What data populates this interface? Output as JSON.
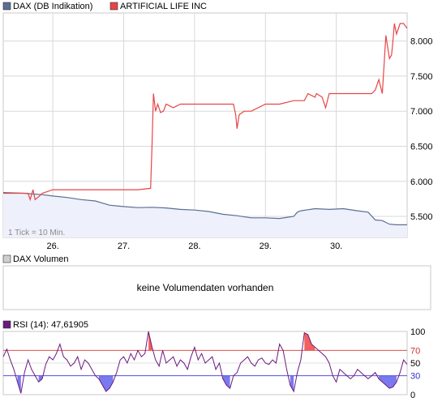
{
  "legend": {
    "dax_label": "DAX (DB Indikation)",
    "dax_color": "#5a6f94",
    "artificial_label": "ARTIFICIAL LIFE INC",
    "artificial_color": "#e64646"
  },
  "tick_note": "1 Tick = 10 Min.",
  "volume_panel": {
    "label": "DAX Volumen",
    "legend_color": "#cfcfcf",
    "message": "keine Volumendaten vorhanden"
  },
  "rsi_panel": {
    "label": "RSI (14): 47,61905",
    "legend_color": "#6b1a7e"
  },
  "chart_data": [
    {
      "type": "line",
      "title": "",
      "x_tick_labels": [
        "26.",
        "27.",
        "28.",
        "29.",
        "30."
      ],
      "y_tick_labels": [
        "8.000",
        "7.500",
        "7.000",
        "6.500",
        "6.000",
        "5.500"
      ],
      "y_ticks": [
        8000,
        7500,
        7000,
        6500,
        6000,
        5500
      ],
      "ylim": [
        5200,
        8400
      ],
      "xlim": [
        25.3,
        31.0
      ],
      "grid": true,
      "legend_position": "top",
      "series": [
        {
          "name": "DAX (DB Indikation)",
          "color": "#5a6f94",
          "fill": "#eef0fb",
          "x": [
            25.3,
            25.6,
            25.85,
            26.0,
            26.2,
            26.4,
            26.6,
            26.8,
            27.0,
            27.2,
            27.4,
            27.6,
            27.8,
            28.0,
            28.2,
            28.4,
            28.6,
            28.8,
            29.0,
            29.2,
            29.4,
            29.45,
            29.5,
            29.7,
            29.9,
            30.1,
            30.3,
            30.45,
            30.55,
            30.65,
            30.75,
            30.85,
            31.0
          ],
          "y": [
            5840,
            5830,
            5810,
            5790,
            5770,
            5740,
            5720,
            5660,
            5640,
            5625,
            5630,
            5620,
            5600,
            5590,
            5570,
            5530,
            5510,
            5480,
            5480,
            5470,
            5500,
            5560,
            5580,
            5610,
            5600,
            5610,
            5580,
            5560,
            5450,
            5440,
            5390,
            5380,
            5380
          ]
        },
        {
          "name": "ARTIFICIAL LIFE INC",
          "color": "#e64646",
          "x": [
            25.3,
            25.65,
            25.68,
            25.72,
            25.75,
            25.8,
            25.85,
            26.0,
            26.3,
            26.6,
            26.9,
            27.2,
            27.38,
            27.4,
            27.42,
            27.45,
            27.48,
            27.52,
            27.56,
            27.6,
            27.7,
            27.8,
            28.0,
            28.2,
            28.4,
            28.55,
            28.58,
            28.6,
            28.63,
            28.7,
            28.8,
            29.0,
            29.2,
            29.4,
            29.5,
            29.55,
            29.6,
            29.7,
            29.72,
            29.8,
            29.85,
            29.9,
            30.0,
            30.2,
            30.4,
            30.5,
            30.55,
            30.6,
            30.65,
            30.7,
            30.75,
            30.78,
            30.8,
            30.82,
            30.85,
            30.9,
            30.95,
            31.0
          ],
          "y": [
            5830,
            5830,
            5740,
            5880,
            5740,
            5780,
            5830,
            5880,
            5880,
            5880,
            5880,
            5880,
            5900,
            6530,
            7250,
            7000,
            7100,
            6980,
            7000,
            7100,
            7050,
            7100,
            7100,
            7100,
            7100,
            7100,
            6950,
            6750,
            6950,
            7000,
            7000,
            7100,
            7100,
            7150,
            7150,
            7150,
            7250,
            7200,
            7250,
            7200,
            7050,
            7250,
            7250,
            7250,
            7250,
            7250,
            7300,
            7450,
            7250,
            8080,
            7750,
            7800,
            8000,
            8250,
            8100,
            8250,
            8250,
            8180
          ]
        }
      ]
    },
    {
      "type": "area",
      "title": "",
      "y_tick_labels": [
        "100",
        "70",
        "50",
        "30",
        "0"
      ],
      "y_ticks": [
        100,
        70,
        50,
        30,
        0
      ],
      "ylim": [
        0,
        100
      ],
      "xlim": [
        25.3,
        31.0
      ],
      "overbought": 70,
      "oversold": 30,
      "series": [
        {
          "name": "RSI (14): 47,61905",
          "color": "#6b1a7e",
          "x": [
            25.3,
            25.35,
            25.4,
            25.45,
            25.5,
            25.55,
            25.6,
            25.65,
            25.7,
            25.75,
            25.8,
            25.85,
            25.9,
            25.95,
            26.0,
            26.05,
            26.1,
            26.15,
            26.2,
            26.25,
            26.3,
            26.35,
            26.4,
            26.45,
            26.5,
            26.55,
            26.6,
            26.65,
            26.7,
            26.75,
            26.8,
            26.85,
            26.9,
            26.95,
            27.0,
            27.05,
            27.1,
            27.15,
            27.2,
            27.25,
            27.3,
            27.35,
            27.4,
            27.45,
            27.5,
            27.55,
            27.6,
            27.65,
            27.7,
            27.75,
            27.8,
            27.85,
            27.9,
            27.95,
            28.0,
            28.05,
            28.1,
            28.15,
            28.2,
            28.25,
            28.3,
            28.35,
            28.4,
            28.45,
            28.5,
            28.55,
            28.6,
            28.65,
            28.7,
            28.75,
            28.8,
            28.85,
            28.9,
            28.95,
            29.0,
            29.05,
            29.1,
            29.15,
            29.2,
            29.25,
            29.3,
            29.35,
            29.4,
            29.45,
            29.5,
            29.55,
            29.6,
            29.65,
            29.7,
            29.75,
            29.8,
            29.85,
            29.9,
            29.95,
            30.0,
            30.05,
            30.1,
            30.15,
            30.2,
            30.25,
            30.3,
            30.35,
            30.4,
            30.45,
            30.5,
            30.55,
            30.6,
            30.65,
            30.7,
            30.75,
            30.8,
            30.85,
            30.9,
            30.95,
            31.0
          ],
          "y": [
            60,
            72,
            55,
            40,
            20,
            2,
            35,
            55,
            40,
            30,
            20,
            25,
            48,
            60,
            55,
            65,
            80,
            60,
            55,
            45,
            50,
            60,
            40,
            55,
            50,
            40,
            30,
            25,
            15,
            5,
            10,
            20,
            35,
            55,
            60,
            50,
            65,
            55,
            70,
            60,
            65,
            100,
            75,
            55,
            45,
            70,
            50,
            55,
            60,
            45,
            55,
            50,
            40,
            60,
            75,
            55,
            65,
            50,
            55,
            60,
            40,
            50,
            25,
            15,
            10,
            30,
            35,
            50,
            55,
            60,
            50,
            45,
            55,
            58,
            50,
            48,
            55,
            50,
            80,
            70,
            40,
            15,
            5,
            35,
            55,
            98,
            95,
            80,
            75,
            70,
            65,
            60,
            50,
            30,
            20,
            40,
            35,
            30,
            25,
            30,
            40,
            35,
            30,
            25,
            30,
            35,
            25,
            20,
            15,
            10,
            12,
            20,
            35,
            55,
            48
          ]
        }
      ]
    }
  ]
}
